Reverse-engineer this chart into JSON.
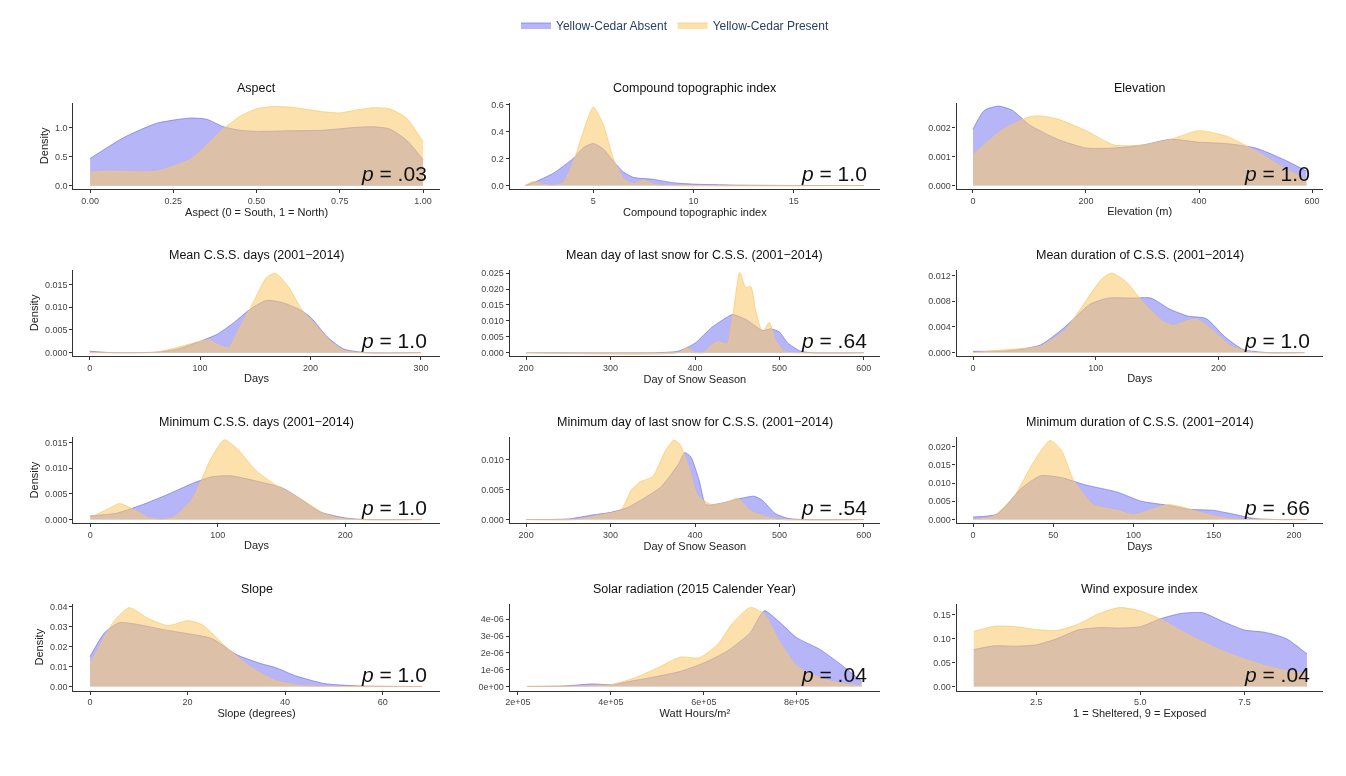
{
  "chart_data": [
    {
      "type": "area",
      "title": "Aspect",
      "xlabel": "Aspect (0 = South, 1 = North)",
      "ylabel": "Density",
      "legend": "top",
      "xlim": [
        -0.05,
        1.05
      ],
      "xticks": [
        {
          "value": 0,
          "label": "0.00"
        },
        {
          "value": 0.25,
          "label": "0.25"
        },
        {
          "value": 0.5,
          "label": "0.50"
        },
        {
          "value": 0.75,
          "label": "0.75"
        },
        {
          "value": 1,
          "label": "1.00"
        }
      ],
      "ylim": [
        -0.06,
        1.44
      ],
      "yticks": [
        {
          "value": 0,
          "label": "0.0"
        },
        0.5,
        {
          "value": 1,
          "label": "1.0"
        }
      ],
      "annotations": [
        "p = .03"
      ],
      "series": [
        {
          "name": "Yellow-Cedar Absent",
          "color": "#7878f0",
          "x": [
            0,
            0.1,
            0.2,
            0.3,
            0.35,
            0.4,
            0.45,
            0.5,
            0.6,
            0.7,
            0.8,
            0.85,
            0.9,
            0.95,
            1.0
          ],
          "values": [
            0.47,
            0.83,
            1.08,
            1.17,
            1.15,
            1.02,
            0.96,
            0.94,
            0.95,
            0.96,
            1.01,
            1.02,
            0.98,
            0.79,
            0.45
          ]
        },
        {
          "name": "Yellow-Cedar Present",
          "color": "#fcc867",
          "x": [
            0,
            0.05,
            0.15,
            0.2,
            0.3,
            0.35,
            0.4,
            0.45,
            0.5,
            0.55,
            0.6,
            0.7,
            0.75,
            0.8,
            0.85,
            0.9,
            0.95,
            1.0
          ],
          "values": [
            0.23,
            0.25,
            0.24,
            0.25,
            0.45,
            0.7,
            0.98,
            1.2,
            1.33,
            1.37,
            1.36,
            1.28,
            1.26,
            1.31,
            1.35,
            1.33,
            1.17,
            0.76
          ]
        }
      ]
    },
    {
      "type": "area",
      "title": "Compound topographic index",
      "xlabel": "Compound topographic index",
      "xlim": [
        0.83,
        19.3
      ],
      "xticks": [
        5,
        10,
        15
      ],
      "ylim": [
        -0.027,
        0.614
      ],
      "yticks": [
        {
          "value": 0,
          "label": "0.0"
        },
        0.2,
        0.4,
        0.6
      ],
      "annotations": [
        "p = 1.0"
      ],
      "series": [
        {
          "color": "#7878f0",
          "x": [
            1.6,
            2,
            3,
            4,
            4.5,
            5,
            5.5,
            6,
            6.5,
            7,
            8,
            9,
            10,
            12,
            15,
            18.5
          ],
          "values": [
            0,
            0.02,
            0.09,
            0.2,
            0.28,
            0.31,
            0.27,
            0.18,
            0.1,
            0.06,
            0.045,
            0.02,
            0.01,
            0.003,
            0,
            0
          ]
        },
        {
          "color": "#fcc867",
          "x": [
            1.6,
            2,
            2.5,
            3,
            3.5,
            4,
            4.5,
            5,
            5.5,
            6,
            6.5,
            7,
            7.5,
            8,
            8.5,
            18.5
          ],
          "values": [
            0,
            0.03,
            0.01,
            0,
            0.02,
            0.17,
            0.4,
            0.58,
            0.45,
            0.2,
            0.05,
            0.01,
            0.04,
            0.01,
            0,
            0
          ]
        }
      ]
    },
    {
      "type": "area",
      "title": "Elevation",
      "xlabel": "Elevation (m)",
      "xlim": [
        -29,
        619
      ],
      "xticks": [
        0,
        200,
        400,
        600
      ],
      "ylim": [
        -0.000125,
        0.002875
      ],
      "yticks": [
        {
          "value": 0,
          "label": "0.000"
        },
        0.001,
        0.002
      ],
      "annotations": [
        "p = 1.0"
      ],
      "series": [
        {
          "color": "#7878f0",
          "x": [
            0,
            20,
            45,
            70,
            100,
            150,
            200,
            250,
            300,
            350,
            400,
            450,
            500,
            550,
            590
          ],
          "values": [
            0.00195,
            0.0026,
            0.00275,
            0.0026,
            0.0021,
            0.0016,
            0.0013,
            0.0013,
            0.0014,
            0.0016,
            0.0015,
            0.00145,
            0.0013,
            0.0009,
            0.0005
          ]
        },
        {
          "color": "#fcc867",
          "x": [
            0,
            50,
            100,
            120,
            150,
            200,
            250,
            300,
            350,
            400,
            450,
            500,
            550,
            590
          ],
          "values": [
            0.00105,
            0.0019,
            0.00238,
            0.00241,
            0.0023,
            0.0019,
            0.0014,
            0.0014,
            0.0016,
            0.0019,
            0.0017,
            0.0012,
            0.0006,
            0.0002
          ]
        }
      ]
    },
    {
      "type": "area",
      "title": "Mean C.S.S. days (2001−2014)",
      "xlabel": "Days",
      "ylabel": "Density",
      "xlim": [
        -14.7,
        317
      ],
      "xticks": [
        0,
        100,
        200,
        300
      ],
      "ylim": [
        -0.0008,
        0.0183
      ],
      "yticks": [
        {
          "value": 0,
          "label": "0.000"
        },
        0.005,
        {
          "value": 0.01,
          "label": "0.010"
        },
        0.015
      ],
      "annotations": [
        "p = 1.0"
      ],
      "series": [
        {
          "color": "#7878f0",
          "x": [
            0,
            20,
            60,
            80,
            100,
            115,
            130,
            145,
            160,
            175,
            190,
            200,
            215,
            230,
            250,
            300
          ],
          "values": [
            0.0003,
            0,
            0.0001,
            0.0008,
            0.0025,
            0.004,
            0.0065,
            0.0095,
            0.0115,
            0.011,
            0.0095,
            0.0078,
            0.0035,
            0.0008,
            0,
            0
          ]
        },
        {
          "color": "#fcc867",
          "x": [
            0,
            60,
            80,
            100,
            108,
            118,
            126,
            135,
            148,
            160,
            168,
            180,
            192,
            205,
            218,
            230,
            245,
            300
          ],
          "values": [
            0,
            0.0001,
            0.0012,
            0.0025,
            0.0028,
            0.0015,
            0.0011,
            0.005,
            0.011,
            0.0165,
            0.0175,
            0.0145,
            0.0095,
            0.006,
            0.0025,
            0.0005,
            0,
            0
          ]
        }
      ]
    },
    {
      "type": "area",
      "title": "Mean day of last snow for C.S.S. (2001−2014)",
      "xlabel": "Day of Snow Season",
      "xlim": [
        180.6,
        619
      ],
      "xticks": [
        200,
        300,
        400,
        500,
        600
      ],
      "ylim": [
        -0.0011,
        0.0261
      ],
      "yticks": [
        {
          "value": 0,
          "label": "0.000"
        },
        0.005,
        {
          "value": 0.01,
          "label": "0.010"
        },
        0.015,
        {
          "value": 0.02,
          "label": "0.020"
        },
        0.025
      ],
      "annotations": [
        "p = .64"
      ],
      "series": [
        {
          "color": "#7878f0",
          "x": [
            200,
            350,
            380,
            400,
            420,
            440,
            445,
            460,
            480,
            490,
            500,
            510,
            525,
            540,
            600
          ],
          "values": [
            0,
            0,
            0.0005,
            0.003,
            0.008,
            0.0115,
            0.012,
            0.0105,
            0.007,
            0.0075,
            0.0065,
            0.003,
            0.0005,
            0,
            0
          ]
        },
        {
          "color": "#fcc867",
          "x": [
            200,
            380,
            390,
            400,
            410,
            420,
            428,
            438,
            445,
            453,
            460,
            466,
            472,
            480,
            488,
            495,
            505,
            515,
            600
          ],
          "values": [
            0,
            0,
            0.0015,
            0,
            0,
            0.0025,
            0.0035,
            0.0027,
            0.012,
            0.0252,
            0.0205,
            0.0208,
            0.013,
            0.0065,
            0.0095,
            0.004,
            0.0005,
            0,
            0
          ]
        }
      ]
    },
    {
      "type": "area",
      "title": "Mean duration of C.S.S. (2001−2014)",
      "xlabel": "Days",
      "xlim": [
        -13.4,
        285
      ],
      "xticks": [
        0,
        100,
        200
      ],
      "ylim": [
        -0.00057,
        0.01294
      ],
      "yticks": [
        {
          "value": 0,
          "label": "0.000"
        },
        0.004,
        0.008,
        0.012
      ],
      "annotations": [
        "p = 1.0"
      ],
      "series": [
        {
          "color": "#7878f0",
          "x": [
            0,
            30,
            55,
            75,
            95,
            110,
            130,
            145,
            160,
            175,
            190,
            205,
            220,
            240,
            270
          ],
          "values": [
            0.0002,
            0.0003,
            0.0012,
            0.004,
            0.0075,
            0.0085,
            0.0085,
            0.0085,
            0.0068,
            0.0057,
            0.0053,
            0.0025,
            0.0005,
            0,
            0
          ]
        },
        {
          "color": "#fcc867",
          "x": [
            0,
            30,
            55,
            75,
            90,
            105,
            113,
            125,
            140,
            155,
            163,
            175,
            182,
            195,
            210,
            230,
            270
          ],
          "values": [
            0,
            0.0005,
            0.001,
            0.0035,
            0.0075,
            0.0115,
            0.0124,
            0.011,
            0.0075,
            0.0048,
            0.0042,
            0.005,
            0.0052,
            0.0035,
            0.001,
            0,
            0
          ]
        }
      ]
    },
    {
      "type": "area",
      "title": "Minimum C.S.S. days (2001−2014)",
      "xlabel": "Days",
      "ylabel": "Density",
      "xlim": [
        -13.2,
        274
      ],
      "xticks": [
        0,
        100,
        200
      ],
      "ylim": [
        -0.00075,
        0.0161
      ],
      "yticks": [
        {
          "value": 0,
          "label": "0.000"
        },
        0.005,
        {
          "value": 0.01,
          "label": "0.010"
        },
        0.015
      ],
      "annotations": [
        "p = 1.0"
      ],
      "series": [
        {
          "color": "#7878f0",
          "x": [
            0,
            20,
            40,
            60,
            80,
            95,
            110,
            130,
            150,
            165,
            180,
            200,
            215,
            260
          ],
          "values": [
            0.0007,
            0.0012,
            0.0028,
            0.0048,
            0.007,
            0.0083,
            0.0085,
            0.0075,
            0.0062,
            0.004,
            0.0015,
            0.0003,
            0,
            0
          ]
        },
        {
          "color": "#fcc867",
          "x": [
            0,
            15,
            23,
            35,
            45,
            55,
            65,
            80,
            95,
            105,
            115,
            130,
            145,
            165,
            185,
            200,
            260
          ],
          "values": [
            0.0004,
            0.0022,
            0.0031,
            0.0018,
            0.0004,
            0,
            0.0004,
            0.004,
            0.012,
            0.0155,
            0.0138,
            0.0095,
            0.0068,
            0.004,
            0.001,
            0.0001,
            0
          ]
        }
      ]
    },
    {
      "type": "area",
      "title": "Minimum day of last snow for C.S.S. (2001−2014)",
      "xlabel": "Day of Snow Season",
      "xlim": [
        180.6,
        619
      ],
      "xticks": [
        200,
        300,
        400,
        500,
        600
      ],
      "ylim": [
        -0.00064,
        0.01386
      ],
      "yticks": [
        {
          "value": 0,
          "label": "0.000"
        },
        0.005,
        {
          "value": 0.01,
          "label": "0.010"
        }
      ],
      "annotations": [
        "p = .54"
      ],
      "series": [
        {
          "color": "#7878f0",
          "x": [
            200,
            250,
            280,
            300,
            320,
            340,
            360,
            380,
            388,
            395,
            405,
            413,
            430,
            450,
            470,
            480,
            495,
            510,
            530,
            600
          ],
          "values": [
            0,
            0.0001,
            0.0008,
            0.0012,
            0.002,
            0.0036,
            0.0055,
            0.0092,
            0.0112,
            0.0105,
            0.0065,
            0.0025,
            0.0027,
            0.0034,
            0.0039,
            0.0032,
            0.001,
            0.0002,
            0,
            0
          ]
        },
        {
          "color": "#fcc867",
          "x": [
            200,
            260,
            290,
            312,
            325,
            335,
            350,
            365,
            375,
            382,
            392,
            403,
            420,
            440,
            450,
            465,
            480,
            500,
            600
          ],
          "values": [
            0,
            0,
            0.0008,
            0.0016,
            0.005,
            0.0063,
            0.0072,
            0.0115,
            0.0133,
            0.0126,
            0.009,
            0.004,
            0.0025,
            0.003,
            0.0036,
            0.0015,
            0.0006,
            0,
            0
          ]
        }
      ]
    },
    {
      "type": "area",
      "title": "Minimum duration of C.S.S. (2001−2014)",
      "xlabel": "Days",
      "xlim": [
        -10.3,
        218
      ],
      "xticks": [
        0,
        50,
        100,
        150,
        200
      ],
      "ylim": [
        -0.00105,
        0.0227
      ],
      "yticks": [
        {
          "value": 0,
          "label": "0.000"
        },
        0.005,
        {
          "value": 0.01,
          "label": "0.010"
        },
        0.015,
        {
          "value": 0.02,
          "label": "0.020"
        }
      ],
      "annotations": [
        "p = .66"
      ],
      "series": [
        {
          "color": "#7878f0",
          "x": [
            0,
            15,
            30,
            42,
            55,
            70,
            90,
            105,
            120,
            135,
            150,
            162,
            175,
            190,
            208
          ],
          "values": [
            0.0007,
            0.0015,
            0.0085,
            0.012,
            0.0115,
            0.0095,
            0.0075,
            0.005,
            0.004,
            0.0028,
            0.0025,
            0.0015,
            0.0003,
            0,
            0
          ]
        },
        {
          "color": "#fcc867",
          "x": [
            0,
            12,
            25,
            38,
            48,
            55,
            63,
            75,
            90,
            100,
            110,
            122,
            130,
            145,
            160,
            170,
            208
          ],
          "values": [
            0,
            0.0008,
            0.006,
            0.016,
            0.0217,
            0.019,
            0.0105,
            0.004,
            0.0025,
            0.0013,
            0.0025,
            0.0041,
            0.0035,
            0.0015,
            0.0002,
            0,
            0
          ]
        }
      ]
    },
    {
      "type": "area",
      "title": "Slope",
      "xlabel": "Slope (degrees)",
      "ylabel": "Density",
      "xlim": [
        -3.4,
        71.7
      ],
      "xticks": [
        0,
        20,
        40,
        60
      ],
      "ylim": [
        -0.002,
        0.0414
      ],
      "yticks": [
        {
          "value": 0,
          "label": "0.00"
        },
        0.01,
        0.02,
        0.03,
        0.04
      ],
      "annotations": [
        "p = 1.0"
      ],
      "series": [
        {
          "color": "#7878f0",
          "x": [
            0,
            3,
            6,
            10,
            15,
            20,
            25,
            30,
            35,
            38,
            42,
            48,
            55,
            68
          ],
          "values": [
            0.015,
            0.027,
            0.032,
            0.031,
            0.0285,
            0.0265,
            0.024,
            0.016,
            0.0115,
            0.0095,
            0.0055,
            0.0015,
            0.0003,
            0
          ]
        },
        {
          "color": "#fcc867",
          "x": [
            0,
            3,
            5,
            8,
            12,
            16,
            20,
            23,
            28,
            33,
            38,
            43,
            50,
            68
          ],
          "values": [
            0.011,
            0.025,
            0.033,
            0.0395,
            0.034,
            0.0305,
            0.033,
            0.031,
            0.0195,
            0.0095,
            0.003,
            0.0005,
            0,
            0
          ]
        }
      ]
    },
    {
      "type": "area",
      "title": "Solar radiation (2015 Calender Year)",
      "xlabel": "Watt Hours/m²",
      "xlim": [
        182300,
        979000
      ],
      "xticks": [
        {
          "value": 200000,
          "label": "2e+05"
        },
        {
          "value": 400000,
          "label": "4e+05"
        },
        {
          "value": 600000,
          "label": "6e+05"
        },
        {
          "value": 800000,
          "label": "8e+05"
        }
      ],
      "ylim": [
        -2.4e-07,
        4.91e-06
      ],
      "yticks": [
        {
          "value": 0,
          "label": "0e+00"
        },
        {
          "value": 1e-06,
          "label": "1e-06"
        },
        {
          "value": 2e-06,
          "label": "2e-06"
        },
        {
          "value": 3e-06,
          "label": "3e-06"
        },
        {
          "value": 4e-06,
          "label": "4e-06"
        }
      ],
      "annotations": [
        "p = .04"
      ],
      "series": [
        {
          "color": "#7878f0",
          "x": [
            220000,
            300000,
            360000,
            400000,
            450000,
            500000,
            550000,
            600000,
            650000,
            700000,
            730000,
            760000,
            800000,
            850000,
            900000,
            940000
          ],
          "values": [
            0,
            3e-08,
            1.5e-07,
            1e-07,
            3.5e-07,
            6e-07,
            9e-07,
            1.4e-06,
            2.1e-06,
            3.2e-06,
            4.5e-06,
            3.9e-06,
            2.9e-06,
            2.2e-06,
            1.2e-06,
            3e-07
          ]
        },
        {
          "color": "#fcc867",
          "x": [
            220000,
            350000,
            400000,
            450000,
            500000,
            550000,
            590000,
            630000,
            660000,
            700000,
            730000,
            760000,
            800000,
            850000,
            900000,
            940000
          ],
          "values": [
            0,
            3e-08,
            1e-07,
            5e-07,
            1.1e-06,
            1.75e-06,
            1.7e-06,
            2.5e-06,
            3.7e-06,
            4.7e-06,
            4.3e-06,
            2.8e-06,
            1.2e-06,
            5e-07,
            1.5e-07,
            5e-08
          ]
        }
      ]
    },
    {
      "type": "area",
      "title": "Wind exposure index",
      "xlabel": "1 = Sheltered, 9 = Exposed",
      "xlim": [
        0.587,
        9.38
      ],
      "xticks": [
        2.5,
        {
          "value": 5,
          "label": "5.0"
        },
        7.5
      ],
      "ylim": [
        -0.0086,
        0.1727
      ],
      "yticks": [
        {
          "value": 0,
          "label": "0.00"
        },
        0.05,
        {
          "value": 0.1,
          "label": "0.10"
        },
        0.15
      ],
      "annotations": [
        "p = .04"
      ],
      "series": [
        {
          "color": "#7878f0",
          "x": [
            1,
            1.5,
            2,
            2.5,
            3,
            3.5,
            4,
            4.5,
            5,
            5.5,
            6,
            6.5,
            7,
            7.5,
            8,
            8.5,
            9
          ],
          "values": [
            0.077,
            0.085,
            0.084,
            0.087,
            0.1,
            0.118,
            0.123,
            0.122,
            0.125,
            0.142,
            0.153,
            0.154,
            0.135,
            0.118,
            0.113,
            0.1,
            0.068
          ]
        },
        {
          "color": "#fcc867",
          "x": [
            1,
            1.5,
            2,
            2.5,
            3,
            3.5,
            4,
            4.5,
            5,
            5.5,
            6,
            6.5,
            7,
            7.5,
            8,
            8.5,
            9
          ],
          "values": [
            0.115,
            0.126,
            0.125,
            0.119,
            0.117,
            0.13,
            0.152,
            0.165,
            0.158,
            0.14,
            0.115,
            0.093,
            0.073,
            0.057,
            0.043,
            0.033,
            0.026
          ]
        }
      ]
    }
  ]
}
